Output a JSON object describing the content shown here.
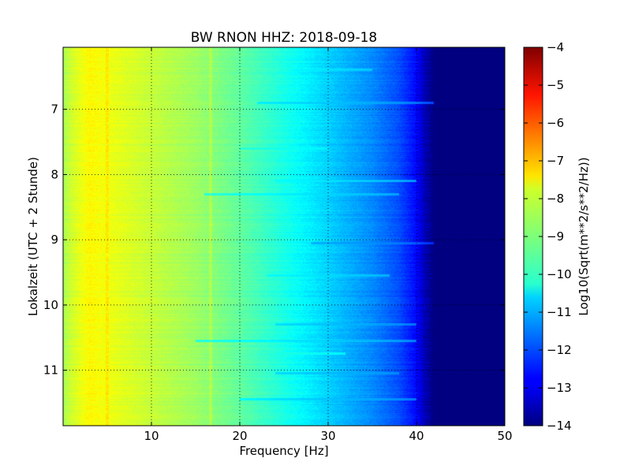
{
  "chart_data": {
    "type": "heatmap",
    "title": "BW RNON HHZ: 2018-09-18",
    "xlabel": "Frequency [Hz]",
    "ylabel": "Lokalzeit (UTC + 2 Stunde)",
    "xlim": [
      0,
      50
    ],
    "ylim": [
      11.85,
      6.05
    ],
    "x_ticks": [
      10,
      20,
      30,
      40,
      50
    ],
    "x_tick_labels": [
      "10",
      "20",
      "30",
      "40",
      "50"
    ],
    "y_ticks": [
      7,
      8,
      9,
      10,
      11
    ],
    "y_tick_labels": [
      "7",
      "8",
      "9",
      "10",
      "11"
    ],
    "grid": true,
    "colormap": "jet",
    "colorbar": {
      "label": "Log10(Sqrt(m**2/s**2/Hz))",
      "range": [
        -14,
        -4
      ],
      "ticks": [
        -4,
        -5,
        -6,
        -7,
        -8,
        -9,
        -10,
        -11,
        -12,
        -13,
        -14
      ],
      "tick_labels": [
        "−4",
        "−5",
        "−6",
        "−7",
        "−8",
        "−9",
        "−10",
        "−11",
        "−12",
        "−13",
        "−14"
      ]
    },
    "spectrum_profile": {
      "frequency_hz": [
        0,
        1,
        3,
        5,
        10,
        15,
        20,
        25,
        30,
        35,
        38,
        40,
        41,
        42,
        50
      ],
      "log10_amplitude": [
        -8.6,
        -8.2,
        -7.7,
        -7.9,
        -8.3,
        -8.7,
        -9.3,
        -10.0,
        -10.7,
        -11.4,
        -12.0,
        -12.7,
        -13.5,
        -14.0,
        -14.0
      ]
    },
    "narrowband_lines_hz": [
      5.0,
      16.7
    ],
    "time_bands": [
      {
        "time": 6.4,
        "freq_range": [
          26,
          35
        ],
        "log10_amplitude": -10.4
      },
      {
        "time": 6.9,
        "freq_range": [
          22,
          42
        ],
        "log10_amplitude": -10.9
      },
      {
        "time": 7.6,
        "freq_range": [
          20,
          30
        ],
        "log10_amplitude": -10.2
      },
      {
        "time": 8.1,
        "freq_range": [
          24,
          40
        ],
        "log10_amplitude": -10.4
      },
      {
        "time": 8.3,
        "freq_range": [
          16,
          38
        ],
        "log10_amplitude": -10.6
      },
      {
        "time": 9.05,
        "freq_range": [
          28,
          42
        ],
        "log10_amplitude": -11.3
      },
      {
        "time": 9.55,
        "freq_range": [
          23,
          37
        ],
        "log10_amplitude": -10.5
      },
      {
        "time": 10.3,
        "freq_range": [
          24,
          40
        ],
        "log10_amplitude": -10.9
      },
      {
        "time": 10.55,
        "freq_range": [
          15,
          40
        ],
        "log10_amplitude": -10.7
      },
      {
        "time": 10.75,
        "freq_range": [
          25,
          32
        ],
        "log10_amplitude": -9.9
      },
      {
        "time": 11.05,
        "freq_range": [
          24,
          38
        ],
        "log10_amplitude": -11.0
      },
      {
        "time": 11.45,
        "freq_range": [
          20,
          40
        ],
        "log10_amplitude": -10.9
      }
    ]
  }
}
